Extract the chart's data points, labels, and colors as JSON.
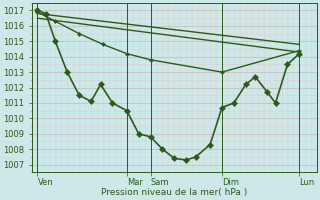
{
  "background_color": "#cce8e8",
  "grid_color_major": "#c8b8b8",
  "grid_color_minor": "#ddd0d0",
  "line_color": "#2d5a1b",
  "ylabel": "Pression niveau de la mer( hPa )",
  "ylim": [
    1006.5,
    1017.5
  ],
  "yticks": [
    1007,
    1008,
    1009,
    1010,
    1011,
    1012,
    1013,
    1014,
    1015,
    1016,
    1017
  ],
  "xlim": [
    0,
    24
  ],
  "xtick_labels": [
    "Ven",
    "Mar",
    "Sam",
    "Dim",
    "Lun"
  ],
  "xtick_positions": [
    0.5,
    8,
    10,
    16,
    22.5
  ],
  "vlines": [
    0.5,
    8,
    10,
    16,
    22.5
  ],
  "series": [
    {
      "x": [
        0.5,
        1.2,
        2.0,
        3.0,
        4.0,
        5.0,
        5.8,
        6.8,
        8.0,
        9.0,
        10.0,
        11.0,
        12.0,
        13.0,
        13.8,
        15.0,
        16.0,
        17.0,
        18.0,
        18.8,
        19.8,
        20.5,
        21.5,
        22.5
      ],
      "y": [
        1017.0,
        1016.8,
        1015.0,
        1013.0,
        1011.5,
        1011.1,
        1012.2,
        1011.0,
        1010.5,
        1009.0,
        1008.8,
        1008.0,
        1007.4,
        1007.3,
        1007.5,
        1008.3,
        1010.7,
        1011.0,
        1012.2,
        1012.7,
        1011.7,
        1011.0,
        1013.5,
        1014.2
      ],
      "marker": "D",
      "markersize": 3,
      "linewidth": 1.2
    },
    {
      "x": [
        0.5,
        22.5
      ],
      "y": [
        1016.8,
        1014.8
      ],
      "marker": null,
      "markersize": 0,
      "linewidth": 1.0
    },
    {
      "x": [
        0.5,
        22.5
      ],
      "y": [
        1016.5,
        1014.3
      ],
      "marker": null,
      "markersize": 0,
      "linewidth": 1.0
    },
    {
      "x": [
        0.5,
        2.0,
        4.0,
        6.0,
        8.0,
        10.0,
        16.0,
        22.5
      ],
      "y": [
        1016.9,
        1016.3,
        1015.5,
        1014.8,
        1014.2,
        1013.8,
        1013.0,
        1014.4
      ],
      "marker": "D",
      "markersize": 2,
      "linewidth": 1.0
    }
  ],
  "figure_size": [
    3.2,
    2.0
  ],
  "dpi": 100
}
